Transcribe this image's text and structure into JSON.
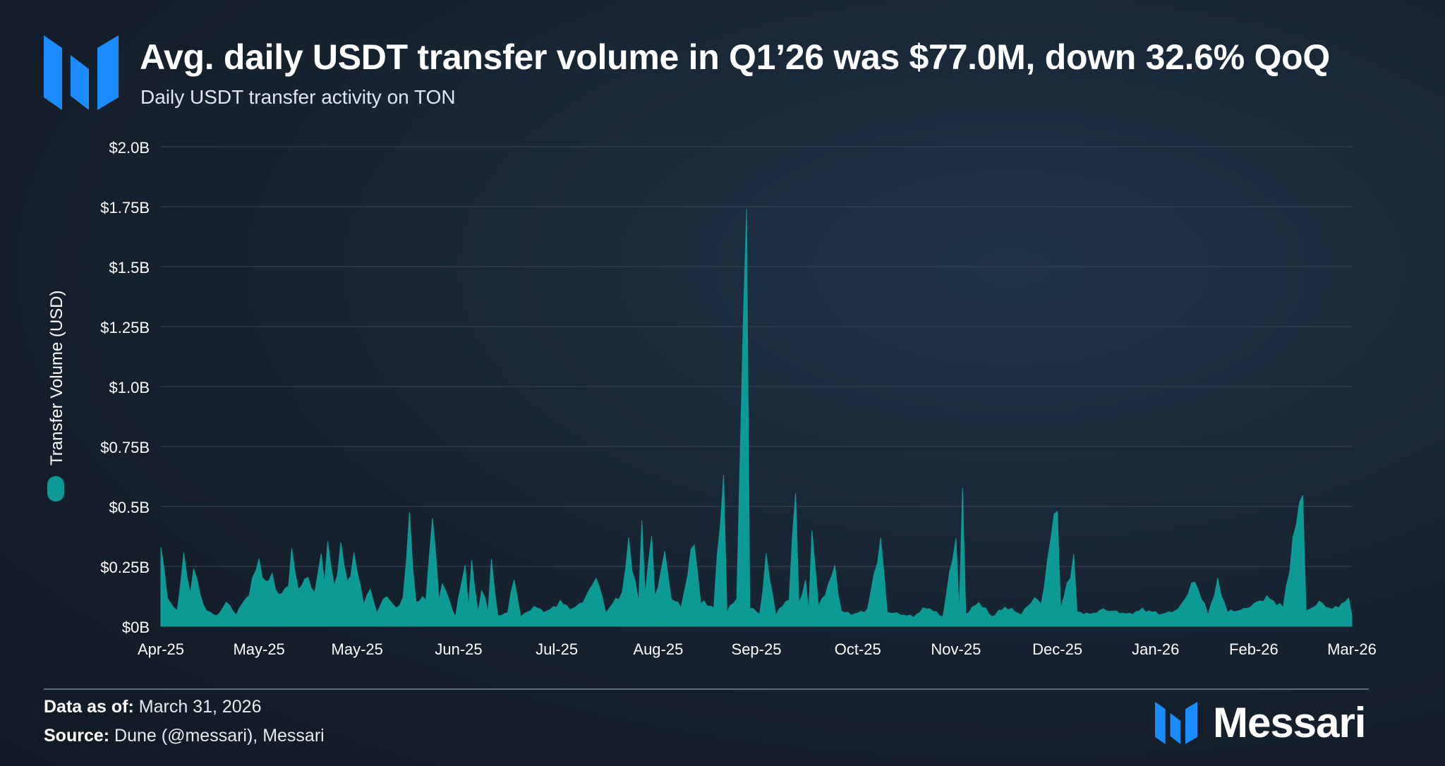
{
  "header": {
    "title": "Avg. daily USDT transfer volume in Q1’26 was $77.0M, down 32.6% QoQ",
    "subtitle": "Daily USDT transfer activity on TON"
  },
  "footer": {
    "data_as_of_label": "Data as of:",
    "data_as_of_value": "March 31, 2026",
    "source_label": "Source:",
    "source_value": "Dune (@messari), Messari",
    "brand_name": "Messari"
  },
  "colors": {
    "series": "#0d9a94",
    "grid": "#3a4653",
    "accent_logo": "#1a8cff"
  },
  "chart_data": {
    "type": "area",
    "ylabel": "Transfer Volume (USD)",
    "legend": {
      "placement": "left-vertical",
      "entry": "Transfer Volume (USD)"
    },
    "ylim": [
      0,
      2.0
    ],
    "y_unit": "billion USD",
    "y_ticks": [
      0,
      0.25,
      0.5,
      0.75,
      1.0,
      1.25,
      1.5,
      1.75,
      2.0
    ],
    "y_tick_labels": [
      "$0B",
      "$0.25B",
      "$0.5B",
      "$0.75B",
      "$1.0B",
      "$1.25B",
      "$1.5B",
      "$1.75B",
      "$2.0B"
    ],
    "x_range": [
      "2025-04-01",
      "2026-03-31"
    ],
    "x_ticks": [
      "2025-04-01",
      "2025-05-01",
      "2025-05-31",
      "2025-07-01",
      "2025-07-31",
      "2025-08-31",
      "2025-09-30",
      "2025-10-31",
      "2025-11-30",
      "2025-12-31",
      "2026-01-30",
      "2026-03-01",
      "2026-03-31"
    ],
    "x_tick_labels": [
      "Apr-25",
      "May-25",
      "May-25",
      "Jun-25",
      "Jul-25",
      "Aug-25",
      "Sep-25",
      "Oct-25",
      "Nov-25",
      "Dec-25",
      "Jan-26",
      "Feb-26",
      "Mar-26"
    ],
    "grid": true,
    "baseline": 0.07,
    "series": [
      {
        "name": "Transfer Volume (USD)",
        "points": [
          [
            "2025-04-01",
            0.33
          ],
          [
            "2025-04-03",
            0.12
          ],
          [
            "2025-04-06",
            0.06
          ],
          [
            "2025-04-08",
            0.31
          ],
          [
            "2025-04-10",
            0.12
          ],
          [
            "2025-04-11",
            0.26
          ],
          [
            "2025-04-14",
            0.08
          ],
          [
            "2025-04-18",
            0.04
          ],
          [
            "2025-04-21",
            0.1
          ],
          [
            "2025-04-24",
            0.05
          ],
          [
            "2025-04-28",
            0.14
          ],
          [
            "2025-05-01",
            0.28
          ],
          [
            "2025-05-03",
            0.17
          ],
          [
            "2025-05-05",
            0.22
          ],
          [
            "2025-05-07",
            0.12
          ],
          [
            "2025-05-10",
            0.18
          ],
          [
            "2025-05-11",
            0.3
          ],
          [
            "2025-05-13",
            0.16
          ],
          [
            "2025-05-16",
            0.2
          ],
          [
            "2025-05-18",
            0.14
          ],
          [
            "2025-05-20",
            0.29
          ],
          [
            "2025-05-21",
            0.2
          ],
          [
            "2025-05-22",
            0.34
          ],
          [
            "2025-05-24",
            0.16
          ],
          [
            "2025-05-26",
            0.33
          ],
          [
            "2025-05-28",
            0.18
          ],
          [
            "2025-05-30",
            0.29
          ],
          [
            "2025-06-02",
            0.1
          ],
          [
            "2025-06-04",
            0.15
          ],
          [
            "2025-06-06",
            0.06
          ],
          [
            "2025-06-09",
            0.13
          ],
          [
            "2025-06-12",
            0.07
          ],
          [
            "2025-06-14",
            0.12
          ],
          [
            "2025-06-16",
            0.43
          ],
          [
            "2025-06-18",
            0.1
          ],
          [
            "2025-06-21",
            0.12
          ],
          [
            "2025-06-23",
            0.45
          ],
          [
            "2025-06-25",
            0.12
          ],
          [
            "2025-06-26",
            0.18
          ],
          [
            "2025-06-30",
            0.04
          ],
          [
            "2025-07-03",
            0.26
          ],
          [
            "2025-07-04",
            0.08
          ],
          [
            "2025-07-05",
            0.25
          ],
          [
            "2025-07-07",
            0.06
          ],
          [
            "2025-07-08",
            0.16
          ],
          [
            "2025-07-10",
            0.06
          ],
          [
            "2025-07-11",
            0.28
          ],
          [
            "2025-07-13",
            0.04
          ],
          [
            "2025-07-16",
            0.06
          ],
          [
            "2025-07-18",
            0.2
          ],
          [
            "2025-07-20",
            0.04
          ],
          [
            "2025-07-24",
            0.08
          ],
          [
            "2025-07-28",
            0.06
          ],
          [
            "2025-08-01",
            0.1
          ],
          [
            "2025-08-05",
            0.07
          ],
          [
            "2025-08-09",
            0.12
          ],
          [
            "2025-08-12",
            0.21
          ],
          [
            "2025-08-15",
            0.06
          ],
          [
            "2025-08-20",
            0.14
          ],
          [
            "2025-08-22",
            0.34
          ],
          [
            "2025-08-25",
            0.1
          ],
          [
            "2025-08-26",
            0.41
          ],
          [
            "2025-08-27",
            0.15
          ],
          [
            "2025-08-29",
            0.37
          ],
          [
            "2025-08-30",
            0.12
          ],
          [
            "2025-09-02",
            0.3
          ],
          [
            "2025-09-04",
            0.12
          ],
          [
            "2025-09-07",
            0.08
          ],
          [
            "2025-09-11",
            0.36
          ],
          [
            "2025-09-13",
            0.1
          ],
          [
            "2025-09-17",
            0.08
          ],
          [
            "2025-09-20",
            0.64
          ],
          [
            "2025-09-21",
            0.06
          ],
          [
            "2025-09-24",
            0.12
          ],
          [
            "2025-09-27",
            1.77
          ],
          [
            "2025-09-28",
            0.08
          ],
          [
            "2025-10-01",
            0.05
          ],
          [
            "2025-10-03",
            0.28
          ],
          [
            "2025-10-06",
            0.05
          ],
          [
            "2025-10-10",
            0.12
          ],
          [
            "2025-10-12",
            0.56
          ],
          [
            "2025-10-13",
            0.1
          ],
          [
            "2025-10-15",
            0.18
          ],
          [
            "2025-10-16",
            0.06
          ],
          [
            "2025-10-17",
            0.42
          ],
          [
            "2025-10-19",
            0.08
          ],
          [
            "2025-10-21",
            0.14
          ],
          [
            "2025-10-24",
            0.24
          ],
          [
            "2025-10-26",
            0.06
          ],
          [
            "2025-10-30",
            0.05
          ],
          [
            "2025-11-03",
            0.07
          ],
          [
            "2025-11-07",
            0.36
          ],
          [
            "2025-11-09",
            0.06
          ],
          [
            "2025-11-13",
            0.05
          ],
          [
            "2025-11-17",
            0.04
          ],
          [
            "2025-11-21",
            0.08
          ],
          [
            "2025-11-26",
            0.04
          ],
          [
            "2025-11-30",
            0.38
          ],
          [
            "2025-12-01",
            0.05
          ],
          [
            "2025-12-02",
            0.56
          ],
          [
            "2025-12-03",
            0.05
          ],
          [
            "2025-12-07",
            0.1
          ],
          [
            "2025-12-11",
            0.04
          ],
          [
            "2025-12-15",
            0.08
          ],
          [
            "2025-12-20",
            0.05
          ],
          [
            "2025-12-24",
            0.12
          ],
          [
            "2025-12-26",
            0.09
          ],
          [
            "2025-12-31",
            0.54
          ],
          [
            "2026-01-01",
            0.07
          ],
          [
            "2026-01-05",
            0.28
          ],
          [
            "2026-01-06",
            0.06
          ],
          [
            "2026-01-10",
            0.05
          ],
          [
            "2026-01-14",
            0.07
          ],
          [
            "2026-01-18",
            0.06
          ],
          [
            "2026-01-22",
            0.05
          ],
          [
            "2026-01-26",
            0.07
          ],
          [
            "2026-02-01",
            0.05
          ],
          [
            "2026-02-06",
            0.07
          ],
          [
            "2026-02-11",
            0.19
          ],
          [
            "2026-02-15",
            0.05
          ],
          [
            "2026-02-18",
            0.18
          ],
          [
            "2026-02-21",
            0.06
          ],
          [
            "2026-02-26",
            0.07
          ],
          [
            "2026-03-05",
            0.12
          ],
          [
            "2026-03-10",
            0.08
          ],
          [
            "2026-03-16",
            0.6
          ],
          [
            "2026-03-17",
            0.06
          ],
          [
            "2026-03-21",
            0.1
          ],
          [
            "2026-03-25",
            0.07
          ],
          [
            "2026-03-30",
            0.11
          ],
          [
            "2026-03-31",
            0.05
          ]
        ]
      }
    ]
  }
}
